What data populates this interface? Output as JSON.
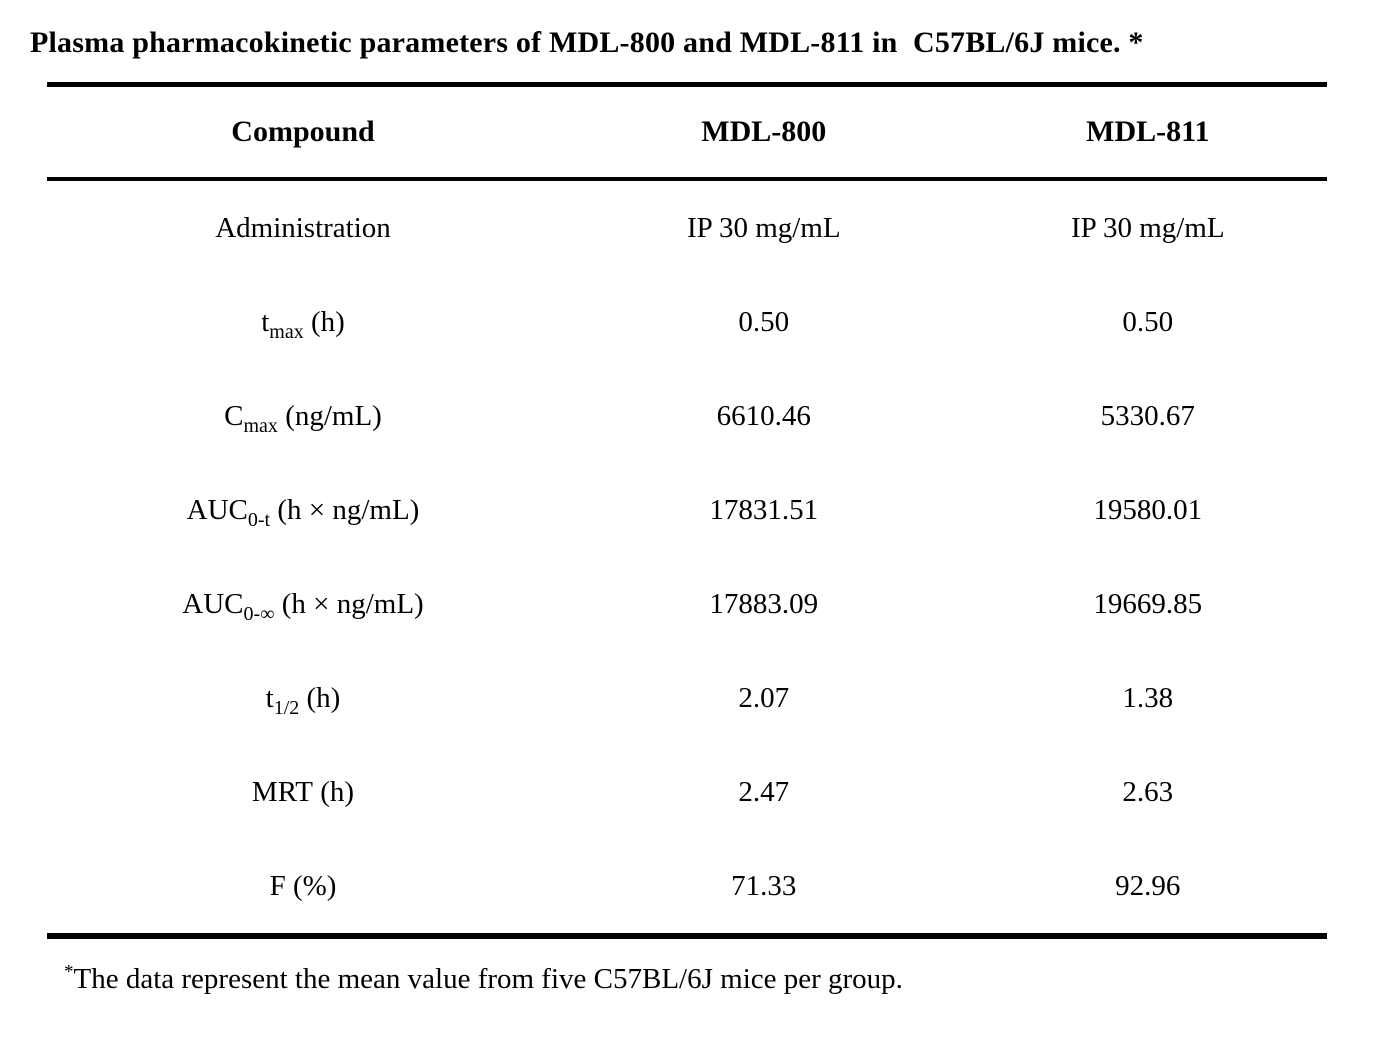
{
  "title": "Plasma pharmacokinetic parameters of MDL-800 and MDL-811 in  C57BL/6J mice. *",
  "table": {
    "header": {
      "compound": "Compound",
      "mdl800": "MDL-800",
      "mdl811": "MDL-811"
    },
    "rows": [
      {
        "label": {
          "pre": "Administration",
          "sub": "",
          "post": ""
        },
        "mdl800": "IP 30 mg/mL",
        "mdl811": "IP 30 mg/mL"
      },
      {
        "label": {
          "pre": "t",
          "sub": "max",
          "post": " (h)"
        },
        "mdl800": "0.50",
        "mdl811": "0.50"
      },
      {
        "label": {
          "pre": "C",
          "sub": "max",
          "post": " (ng/mL)"
        },
        "mdl800": "6610.46",
        "mdl811": "5330.67"
      },
      {
        "label": {
          "pre": "AUC",
          "sub": "0-t",
          "post": " (h × ng/mL)"
        },
        "mdl800": "17831.51",
        "mdl811": "19580.01"
      },
      {
        "label": {
          "pre": "AUC",
          "sub": "0-∞",
          "post": " (h × ng/mL)"
        },
        "mdl800": "17883.09",
        "mdl811": "19669.85"
      },
      {
        "label": {
          "pre": "t",
          "sub": "1/2",
          "post": " (h)"
        },
        "mdl800": "2.07",
        "mdl811": "1.38"
      },
      {
        "label": {
          "pre": "MRT",
          "sub": "",
          "post": " (h)"
        },
        "mdl800": "2.47",
        "mdl811": "2.63"
      },
      {
        "label": {
          "pre": "F",
          "sub": "",
          "post": " (%)"
        },
        "mdl800": "71.33",
        "mdl811": "92.96"
      }
    ]
  },
  "footnote": {
    "marker": "*",
    "text": "The data represent the mean value from five C57BL/6J mice per group."
  },
  "colors": {
    "text": "#000000",
    "background": "#ffffff",
    "rule": "#000000"
  }
}
